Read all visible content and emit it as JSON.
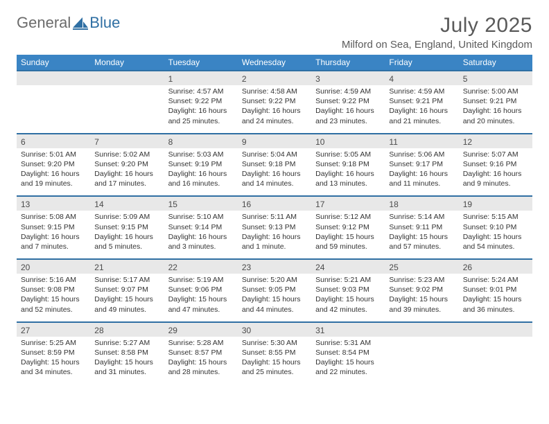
{
  "brand": {
    "name_left": "General",
    "name_right": "Blue"
  },
  "title": "July 2025",
  "location": "Milford on Sea, England, United Kingdom",
  "colors": {
    "header_bg": "#3a84c4",
    "header_text": "#ffffff",
    "date_bg": "#e8e8e8",
    "week_border": "#2f6fa3",
    "body_text": "#333333",
    "title_text": "#5a5a5a",
    "logo_gray": "#6b6b6b",
    "logo_blue": "#2f6fa3"
  },
  "days_of_week": [
    "Sunday",
    "Monday",
    "Tuesday",
    "Wednesday",
    "Thursday",
    "Friday",
    "Saturday"
  ],
  "labels": {
    "sunrise": "Sunrise:",
    "sunset": "Sunset:",
    "daylight": "Daylight:"
  },
  "weeks": [
    [
      null,
      null,
      {
        "d": "1",
        "sr": "4:57 AM",
        "ss": "9:22 PM",
        "dl": "16 hours and 25 minutes."
      },
      {
        "d": "2",
        "sr": "4:58 AM",
        "ss": "9:22 PM",
        "dl": "16 hours and 24 minutes."
      },
      {
        "d": "3",
        "sr": "4:59 AM",
        "ss": "9:22 PM",
        "dl": "16 hours and 23 minutes."
      },
      {
        "d": "4",
        "sr": "4:59 AM",
        "ss": "9:21 PM",
        "dl": "16 hours and 21 minutes."
      },
      {
        "d": "5",
        "sr": "5:00 AM",
        "ss": "9:21 PM",
        "dl": "16 hours and 20 minutes."
      }
    ],
    [
      {
        "d": "6",
        "sr": "5:01 AM",
        "ss": "9:20 PM",
        "dl": "16 hours and 19 minutes."
      },
      {
        "d": "7",
        "sr": "5:02 AM",
        "ss": "9:20 PM",
        "dl": "16 hours and 17 minutes."
      },
      {
        "d": "8",
        "sr": "5:03 AM",
        "ss": "9:19 PM",
        "dl": "16 hours and 16 minutes."
      },
      {
        "d": "9",
        "sr": "5:04 AM",
        "ss": "9:18 PM",
        "dl": "16 hours and 14 minutes."
      },
      {
        "d": "10",
        "sr": "5:05 AM",
        "ss": "9:18 PM",
        "dl": "16 hours and 13 minutes."
      },
      {
        "d": "11",
        "sr": "5:06 AM",
        "ss": "9:17 PM",
        "dl": "16 hours and 11 minutes."
      },
      {
        "d": "12",
        "sr": "5:07 AM",
        "ss": "9:16 PM",
        "dl": "16 hours and 9 minutes."
      }
    ],
    [
      {
        "d": "13",
        "sr": "5:08 AM",
        "ss": "9:15 PM",
        "dl": "16 hours and 7 minutes."
      },
      {
        "d": "14",
        "sr": "5:09 AM",
        "ss": "9:15 PM",
        "dl": "16 hours and 5 minutes."
      },
      {
        "d": "15",
        "sr": "5:10 AM",
        "ss": "9:14 PM",
        "dl": "16 hours and 3 minutes."
      },
      {
        "d": "16",
        "sr": "5:11 AM",
        "ss": "9:13 PM",
        "dl": "16 hours and 1 minute."
      },
      {
        "d": "17",
        "sr": "5:12 AM",
        "ss": "9:12 PM",
        "dl": "15 hours and 59 minutes."
      },
      {
        "d": "18",
        "sr": "5:14 AM",
        "ss": "9:11 PM",
        "dl": "15 hours and 57 minutes."
      },
      {
        "d": "19",
        "sr": "5:15 AM",
        "ss": "9:10 PM",
        "dl": "15 hours and 54 minutes."
      }
    ],
    [
      {
        "d": "20",
        "sr": "5:16 AM",
        "ss": "9:08 PM",
        "dl": "15 hours and 52 minutes."
      },
      {
        "d": "21",
        "sr": "5:17 AM",
        "ss": "9:07 PM",
        "dl": "15 hours and 49 minutes."
      },
      {
        "d": "22",
        "sr": "5:19 AM",
        "ss": "9:06 PM",
        "dl": "15 hours and 47 minutes."
      },
      {
        "d": "23",
        "sr": "5:20 AM",
        "ss": "9:05 PM",
        "dl": "15 hours and 44 minutes."
      },
      {
        "d": "24",
        "sr": "5:21 AM",
        "ss": "9:03 PM",
        "dl": "15 hours and 42 minutes."
      },
      {
        "d": "25",
        "sr": "5:23 AM",
        "ss": "9:02 PM",
        "dl": "15 hours and 39 minutes."
      },
      {
        "d": "26",
        "sr": "5:24 AM",
        "ss": "9:01 PM",
        "dl": "15 hours and 36 minutes."
      }
    ],
    [
      {
        "d": "27",
        "sr": "5:25 AM",
        "ss": "8:59 PM",
        "dl": "15 hours and 34 minutes."
      },
      {
        "d": "28",
        "sr": "5:27 AM",
        "ss": "8:58 PM",
        "dl": "15 hours and 31 minutes."
      },
      {
        "d": "29",
        "sr": "5:28 AM",
        "ss": "8:57 PM",
        "dl": "15 hours and 28 minutes."
      },
      {
        "d": "30",
        "sr": "5:30 AM",
        "ss": "8:55 PM",
        "dl": "15 hours and 25 minutes."
      },
      {
        "d": "31",
        "sr": "5:31 AM",
        "ss": "8:54 PM",
        "dl": "15 hours and 22 minutes."
      },
      null,
      null
    ]
  ]
}
